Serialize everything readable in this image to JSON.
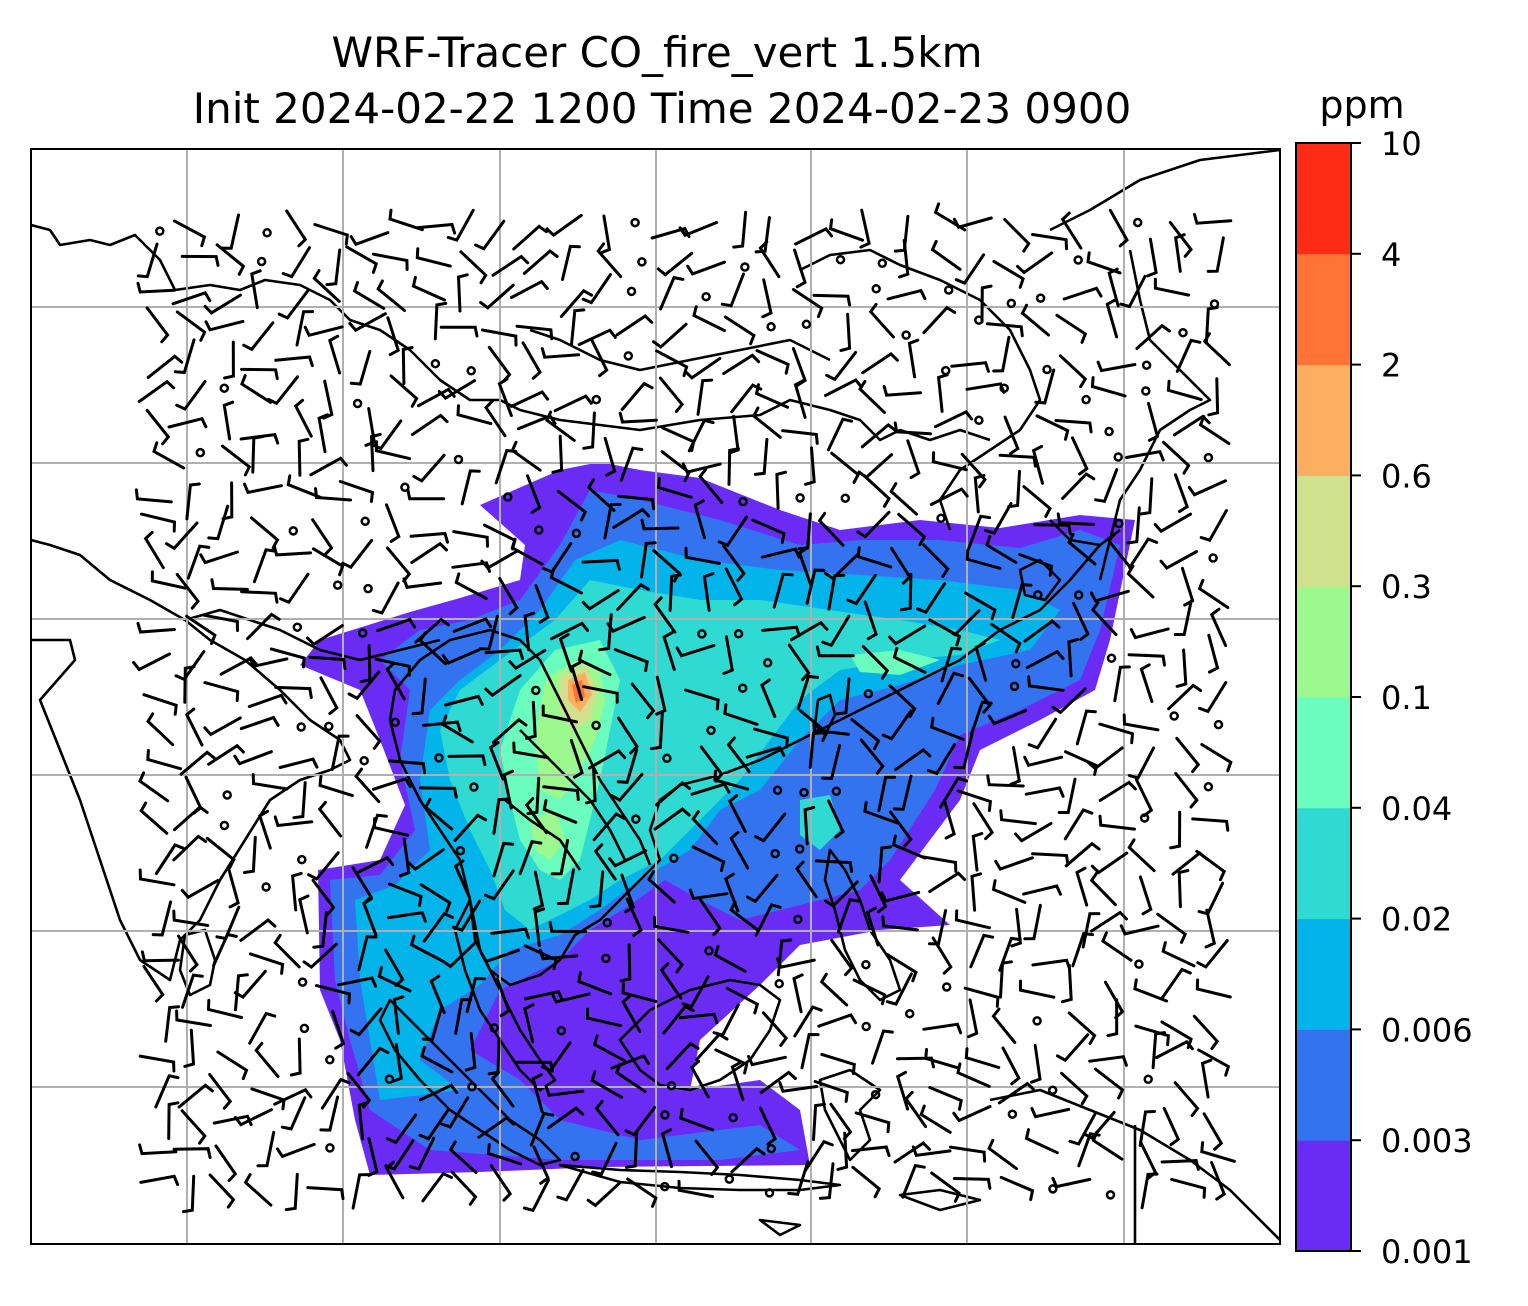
{
  "title": {
    "line1": "WRF-Tracer CO_fire_vert 1.5km",
    "line2": "Init 2024-02-22 1200 Time 2024-02-23 0900"
  },
  "colorbar": {
    "unit": "ppm",
    "levels": [
      "0.001",
      "0.003",
      "0.006",
      "0.02",
      "0.04",
      "0.1",
      "0.3",
      "0.6",
      "2",
      "4",
      "10"
    ],
    "colors": [
      "#6a2cf5",
      "#3473f0",
      "#02b4ea",
      "#2fdad3",
      "#6afdbd",
      "#9bf98e",
      "#d0e08c",
      "#fdae60",
      "#ff7336",
      "#ff2b15"
    ]
  },
  "map": {
    "gridlines": true,
    "coastline_color": "#000000",
    "grid_color": "#b0b0b0",
    "wind_barb_color": "#000000"
  }
}
